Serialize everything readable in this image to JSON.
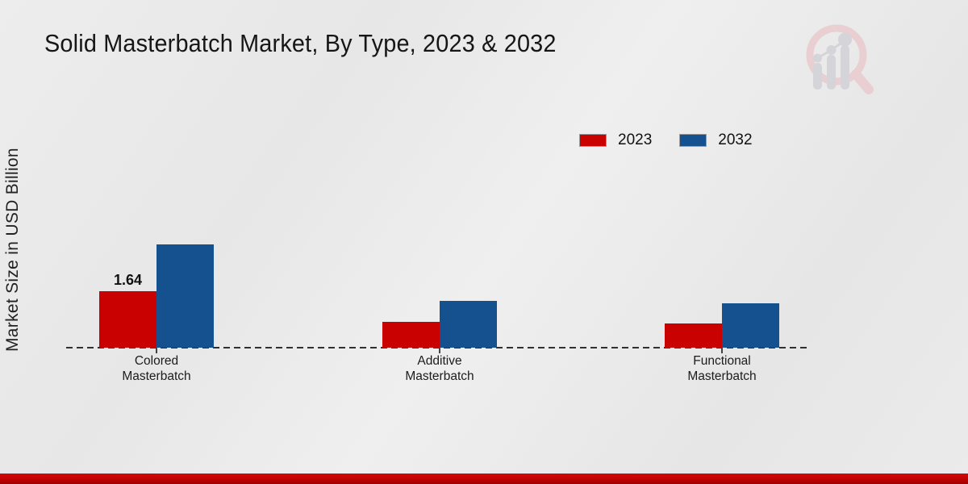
{
  "title": "Solid Masterbatch Market, By Type, 2023 & 2032",
  "ylabel": "Market Size in USD Billion",
  "legend": {
    "items": [
      {
        "label": "2023",
        "color": "#c90101"
      },
      {
        "label": "2032",
        "color": "#15518e"
      }
    ]
  },
  "colors": {
    "series_2023": "#c90101",
    "series_2032": "#15518e",
    "bottom_band": "#c00303",
    "background": "#e9e9e9",
    "text": "#161616"
  },
  "chart_data": {
    "type": "bar",
    "title": "Solid Masterbatch Market, By Type, 2023 & 2032",
    "xlabel": "",
    "ylabel": "Market Size in USD Billion",
    "categories": [
      "Colored Masterbatch",
      "Additive Masterbatch",
      "Functional Masterbatch"
    ],
    "series": [
      {
        "name": "2023",
        "color": "#c90101",
        "values": [
          1.64,
          0.75,
          0.7
        ]
      },
      {
        "name": "2032",
        "color": "#15518e",
        "values": [
          3.0,
          1.35,
          1.3
        ]
      }
    ],
    "data_labels": [
      {
        "series_index": 0,
        "category_index": 0,
        "text": "1.64"
      }
    ],
    "ylim": [
      0,
      3.5
    ],
    "grid": false,
    "axis_style": "dashed-baseline-only",
    "legend_position": "top-right"
  },
  "watermark": {
    "name": "market-research-magnifier-logo"
  }
}
